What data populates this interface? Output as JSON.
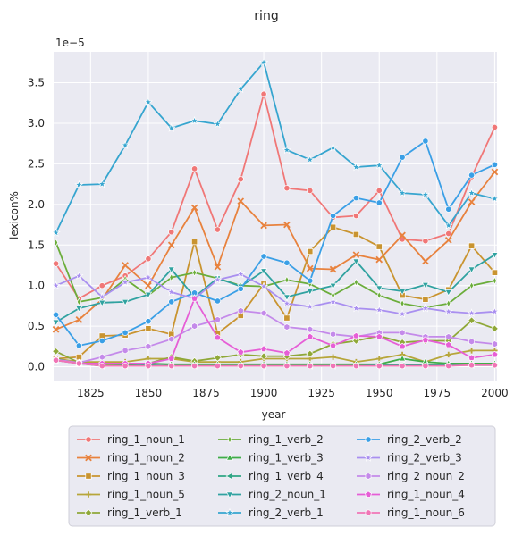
{
  "chart_data": {
    "type": "line",
    "title": "ring",
    "xlabel": "year",
    "ylabel": "lexicon%",
    "y_scale_note": "1e−5",
    "x_ticks": [
      1825,
      1850,
      1875,
      1900,
      1925,
      1950,
      1975,
      2000
    ],
    "y_ticks": [
      "0.0",
      "0.5",
      "1.0",
      "1.5",
      "2.0",
      "2.5",
      "3.0",
      "3.5"
    ],
    "xlim": [
      1809,
      2001
    ],
    "ylim": [
      -0.17,
      3.88
    ],
    "grid": true,
    "legend_position": "bottom",
    "x": [
      1810,
      1820,
      1830,
      1840,
      1850,
      1860,
      1870,
      1880,
      1890,
      1900,
      1910,
      1920,
      1930,
      1940,
      1950,
      1960,
      1970,
      1980,
      1990,
      2000
    ],
    "series": [
      {
        "name": "ring_1_noun_1",
        "color": "#f07777",
        "marker": "circle",
        "values": [
          1.27,
          0.84,
          1.0,
          1.12,
          1.33,
          1.66,
          2.44,
          1.69,
          2.31,
          3.36,
          2.2,
          2.17,
          1.84,
          1.86,
          2.17,
          1.57,
          1.55,
          1.64,
          2.34,
          2.95
        ]
      },
      {
        "name": "ring_1_noun_2",
        "color": "#e8823e",
        "marker": "x",
        "values": [
          0.46,
          0.58,
          0.83,
          1.25,
          1.0,
          1.5,
          1.96,
          1.23,
          2.04,
          1.74,
          1.75,
          1.21,
          1.2,
          1.38,
          1.32,
          1.62,
          1.3,
          1.56,
          2.03,
          2.4
        ]
      },
      {
        "name": "ring_1_noun_3",
        "color": "#c99430",
        "marker": "square",
        "values": [
          0.1,
          0.12,
          0.38,
          0.39,
          0.47,
          0.4,
          1.54,
          0.41,
          0.63,
          1.02,
          0.6,
          1.42,
          1.72,
          1.63,
          1.48,
          0.88,
          0.83,
          0.95,
          1.49,
          1.16
        ]
      },
      {
        "name": "ring_1_noun_5",
        "color": "#b7a63a",
        "marker": "plus",
        "values": [
          0.1,
          0.06,
          0.06,
          0.06,
          0.1,
          0.1,
          0.06,
          0.06,
          0.06,
          0.1,
          0.1,
          0.1,
          0.12,
          0.06,
          0.1,
          0.15,
          0.06,
          0.15,
          0.2,
          0.2
        ]
      },
      {
        "name": "ring_1_verb_1",
        "color": "#8fa838",
        "marker": "diamond",
        "values": [
          0.19,
          0.05,
          0.03,
          0.03,
          0.04,
          0.12,
          0.07,
          0.11,
          0.15,
          0.13,
          0.13,
          0.16,
          0.28,
          0.32,
          0.38,
          0.3,
          0.32,
          0.32,
          0.57,
          0.47
        ]
      },
      {
        "name": "ring_1_verb_2",
        "color": "#6bad3b",
        "marker": "thin_diamond",
        "values": [
          1.53,
          0.8,
          0.85,
          1.08,
          0.88,
          1.1,
          1.16,
          1.09,
          1.0,
          0.99,
          1.07,
          1.02,
          0.88,
          1.04,
          0.88,
          0.78,
          0.73,
          0.78,
          1.0,
          1.06
        ]
      },
      {
        "name": "ring_1_verb_3",
        "color": "#3fad48",
        "marker": "triangle_up",
        "values": [
          0.1,
          0.04,
          0.04,
          0.03,
          0.04,
          0.03,
          0.03,
          0.03,
          0.03,
          0.03,
          0.03,
          0.03,
          0.03,
          0.03,
          0.03,
          0.1,
          0.06,
          0.04,
          0.04,
          0.04
        ]
      },
      {
        "name": "ring_1_verb_4",
        "color": "#2fa585",
        "marker": "triangle_left",
        "values": [
          0.08,
          0.04,
          0.01,
          0.01,
          0.02,
          0.01,
          0.01,
          0.01,
          0.01,
          0.01,
          0.01,
          0.01,
          0.01,
          0.01,
          0.02,
          0.02,
          0.02,
          0.02,
          0.02,
          0.02
        ]
      },
      {
        "name": "ring_2_noun_1",
        "color": "#30a2a0",
        "marker": "triangle_down",
        "values": [
          0.55,
          0.72,
          0.79,
          0.8,
          0.89,
          1.2,
          0.86,
          1.09,
          0.99,
          1.18,
          0.86,
          0.93,
          1.0,
          1.3,
          0.97,
          0.93,
          1.01,
          0.92,
          1.2,
          1.38
        ]
      },
      {
        "name": "ring_2_verb_1",
        "color": "#36a5cf",
        "marker": "star",
        "values": [
          1.65,
          2.24,
          2.25,
          2.73,
          3.26,
          2.94,
          3.03,
          2.99,
          3.42,
          3.75,
          2.67,
          2.55,
          2.7,
          2.46,
          2.48,
          2.14,
          2.12,
          1.74,
          2.14,
          2.07
        ]
      },
      {
        "name": "ring_2_verb_2",
        "color": "#3a9fe6",
        "marker": "circle",
        "values": [
          0.64,
          0.26,
          0.32,
          0.42,
          0.56,
          0.8,
          0.91,
          0.81,
          0.96,
          1.36,
          1.28,
          1.06,
          1.86,
          2.08,
          2.02,
          2.58,
          2.78,
          1.94,
          2.36,
          2.49
        ]
      },
      {
        "name": "ring_2_verb_3",
        "color": "#a98ff0",
        "marker": "star",
        "values": [
          1.0,
          1.12,
          0.86,
          1.04,
          1.1,
          0.92,
          0.84,
          1.07,
          1.14,
          0.99,
          0.78,
          0.74,
          0.8,
          0.72,
          0.7,
          0.65,
          0.72,
          0.68,
          0.66,
          0.68
        ]
      },
      {
        "name": "ring_2_noun_2",
        "color": "#c48aea",
        "marker": "hexagon",
        "values": [
          0.09,
          0.05,
          0.12,
          0.2,
          0.25,
          0.34,
          0.5,
          0.58,
          0.69,
          0.66,
          0.49,
          0.46,
          0.4,
          0.37,
          0.42,
          0.42,
          0.37,
          0.37,
          0.31,
          0.28
        ]
      },
      {
        "name": "ring_1_noun_4",
        "color": "#e65ed6",
        "marker": "pentagon",
        "values": [
          0.08,
          0.04,
          0.04,
          0.04,
          0.04,
          0.1,
          0.84,
          0.36,
          0.18,
          0.22,
          0.17,
          0.37,
          0.26,
          0.38,
          0.37,
          0.25,
          0.33,
          0.27,
          0.11,
          0.15
        ]
      },
      {
        "name": "ring_1_noun_6",
        "color": "#f075b6",
        "marker": "circle",
        "values": [
          0.08,
          0.04,
          0.01,
          0.01,
          0.01,
          0.01,
          0.01,
          0.01,
          0.01,
          0.01,
          0.01,
          0.01,
          0.01,
          0.01,
          0.01,
          0.01,
          0.01,
          0.01,
          0.02,
          0.02
        ]
      }
    ]
  }
}
